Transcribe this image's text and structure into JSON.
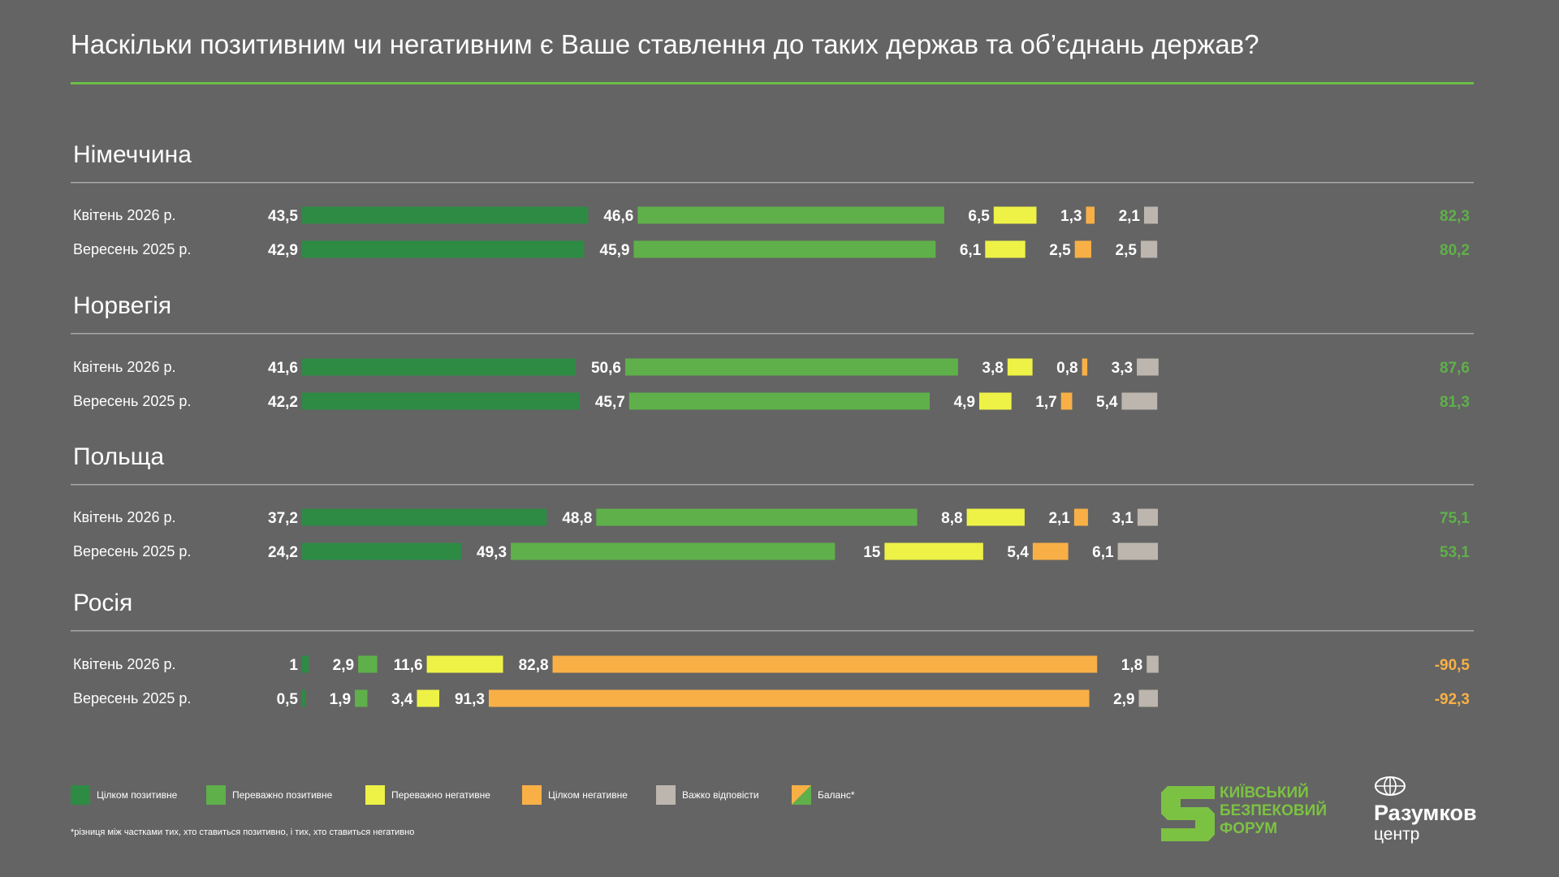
{
  "title": "Наскільки позитивним чи негативним є Ваше ставлення до таких держав та об’єднань держав?",
  "colors": {
    "fully_positive": "#2e8b44",
    "mostly_positive": "#5fb04a",
    "mostly_negative": "#eef246",
    "fully_negative": "#f8b046",
    "hard_to_say": "#bcb6ae",
    "balance_positive": "#5fb04a",
    "balance_negative": "#f8b046",
    "rule": "#6bbf45",
    "background": "#646464"
  },
  "chart_data": {
    "type": "bar",
    "stacked": true,
    "orientation": "horizontal",
    "series_names": [
      "Цілком позитивне",
      "Переважно позитивне",
      "Переважно негативне",
      "Цілком негативне",
      "Важко відповісти"
    ],
    "value_field": "values",
    "balance_label": "Баланс*",
    "sections": [
      {
        "name": "Німеччина",
        "rows": [
          {
            "label": "Квітень  2026 р.",
            "values": [
              43.5,
              46.6,
              6.5,
              1.3,
              2.1
            ],
            "labels": [
              "43,5",
              "46,6",
              "6,5",
              "1,3",
              "2,1"
            ],
            "balance": "82,3",
            "balance_value": 82.3
          },
          {
            "label": "Вересень 2025 р.",
            "values": [
              42.9,
              45.9,
              6.1,
              2.5,
              2.5
            ],
            "labels": [
              "42,9",
              "45,9",
              "6,1",
              "2,5",
              "2,5"
            ],
            "balance": "80,2",
            "balance_value": 80.2
          }
        ]
      },
      {
        "name": "Норвегія",
        "rows": [
          {
            "label": "Квітень  2026 р.",
            "values": [
              41.6,
              50.6,
              3.8,
              0.8,
              3.3
            ],
            "labels": [
              "41,6",
              "50,6",
              "3,8",
              "0,8",
              "3,3"
            ],
            "balance": "87,6",
            "balance_value": 87.6
          },
          {
            "label": "Вересень 2025 р.",
            "values": [
              42.2,
              45.7,
              4.9,
              1.7,
              5.4
            ],
            "labels": [
              "42,2",
              "45,7",
              "4,9",
              "1,7",
              "5,4"
            ],
            "balance": "81,3",
            "balance_value": 81.3
          }
        ]
      },
      {
        "name": "Польща",
        "rows": [
          {
            "label": "Квітень  2026 р.",
            "values": [
              37.2,
              48.8,
              8.8,
              2.1,
              3.1
            ],
            "labels": [
              "37,2",
              "48,8",
              "8,8",
              "2,1",
              "3,1"
            ],
            "balance": "75,1",
            "balance_value": 75.1
          },
          {
            "label": "Вересень 2025 р.",
            "values": [
              24.2,
              49.3,
              15,
              5.4,
              6.1
            ],
            "labels": [
              "24,2",
              "49,3",
              "15",
              "5,4",
              "6,1"
            ],
            "balance": "53,1",
            "balance_value": 53.1
          }
        ]
      },
      {
        "name": "Росія",
        "rows": [
          {
            "label": "Квітень  2026 р.",
            "values": [
              1,
              2.9,
              11.6,
              82.8,
              1.8
            ],
            "labels": [
              "1",
              "2,9",
              "11,6",
              "82,8",
              "1,8"
            ],
            "balance": "-90,5",
            "balance_value": -90.5
          },
          {
            "label": "Вересень 2025 р.",
            "values": [
              0.5,
              1.9,
              3.4,
              91.3,
              2.9
            ],
            "labels": [
              "0,5",
              "1,9",
              "3,4",
              "91,3",
              "2,9"
            ],
            "balance": "-92,3",
            "balance_value": -92.3
          }
        ]
      }
    ]
  },
  "legend": {
    "items": [
      {
        "label": "Цілком позитивне",
        "color_key": "fully_positive"
      },
      {
        "label": "Переважно позитивне",
        "color_key": "mostly_positive"
      },
      {
        "label": "Переважно негативне",
        "color_key": "mostly_negative"
      },
      {
        "label": "Цілком негативне",
        "color_key": "fully_negative"
      },
      {
        "label": "Важко відповісти",
        "color_key": "hard_to_say"
      },
      {
        "label": "Баланс*",
        "color_key": "balance"
      }
    ]
  },
  "footnote": "*різниця між частками тих, хто ставиться позитивно, і тих, хто ставиться негативно",
  "logos": {
    "kbf_lines": [
      "КИЇВСЬКИЙ",
      "БЕЗПЕКОВИЙ",
      "ФОРУМ"
    ],
    "kbf_icon": "kbf-s-logo-icon",
    "razumkov_name": "Разумков",
    "razumkov_sub": "центр",
    "razumkov_icon": "globe-icon"
  }
}
